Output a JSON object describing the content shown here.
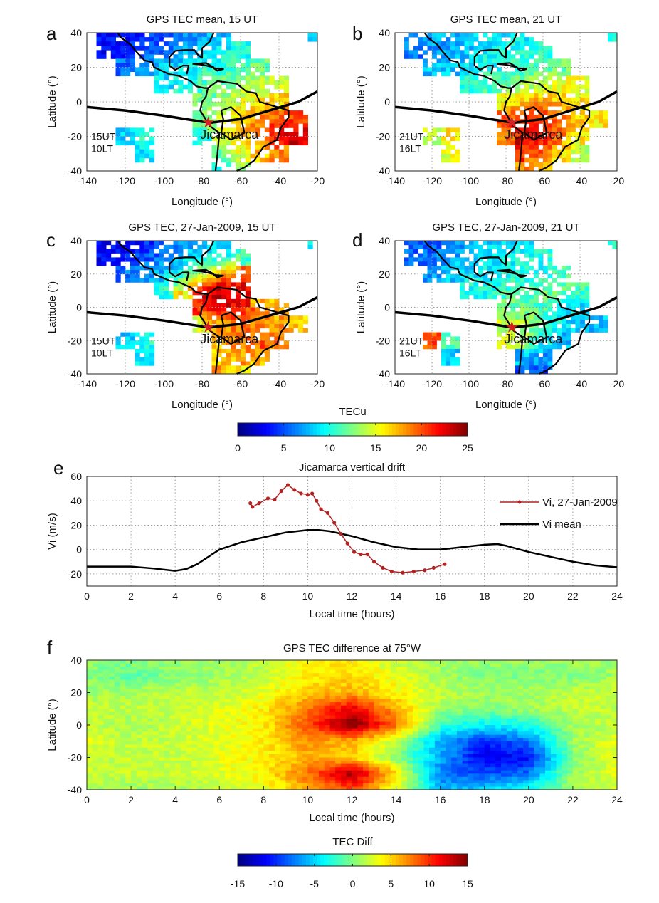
{
  "colors": {
    "equator_line": "#000000",
    "coastline": "#000000",
    "star": "#d42020",
    "vi_day": "#b22222",
    "vi_mean": "#000000",
    "grid": "#9a9a9a"
  },
  "colormap": "jet",
  "chart_data": [
    {
      "panel": "a",
      "type": "heatmap",
      "title": "GPS TEC mean, 15 UT",
      "xlabel": "Longitude (°)",
      "ylabel": "Latitude (°)",
      "xlim": [
        -140,
        -20
      ],
      "ylim": [
        -40,
        40
      ],
      "xticks": [
        "-140",
        "-120",
        "-100",
        "-80",
        "-60",
        "-40",
        "-20"
      ],
      "yticks": [
        "40",
        "20",
        "0",
        "-20",
        "-40"
      ],
      "grid": true,
      "annotation": [
        "15UT",
        "10LT"
      ],
      "marker_label": "Jicamarca",
      "colorbar": "TECu",
      "lon": [
        -140,
        -130,
        -120,
        -110,
        -100,
        -90,
        -80,
        -70,
        -60,
        -50,
        -40,
        -30,
        -20
      ],
      "lat": [
        40,
        30,
        20,
        10,
        0,
        -10,
        -20,
        -30,
        -40
      ],
      "values": [
        [
          null,
          3,
          3,
          4,
          5,
          6,
          7,
          8,
          null,
          null,
          null,
          null,
          9
        ],
        [
          null,
          3,
          4,
          5,
          6,
          7,
          8,
          9,
          10,
          null,
          null,
          null,
          null
        ],
        [
          null,
          null,
          6,
          7,
          8,
          9,
          10,
          11,
          11,
          12,
          null,
          null,
          null
        ],
        [
          null,
          null,
          null,
          null,
          9,
          10,
          11,
          12,
          13,
          14,
          14,
          null,
          null
        ],
        [
          null,
          null,
          null,
          null,
          null,
          null,
          12,
          13,
          15,
          16,
          17,
          null,
          null
        ],
        [
          null,
          null,
          null,
          null,
          null,
          null,
          12,
          15,
          17,
          19,
          20,
          20,
          null
        ],
        [
          null,
          null,
          8,
          10,
          null,
          null,
          10,
          14,
          17,
          19,
          22,
          23,
          null
        ],
        [
          null,
          null,
          null,
          9,
          null,
          null,
          null,
          12,
          15,
          17,
          19,
          null,
          null
        ],
        [
          null,
          null,
          null,
          null,
          null,
          null,
          null,
          10,
          13,
          null,
          null,
          null,
          null
        ]
      ]
    },
    {
      "panel": "b",
      "type": "heatmap",
      "title": "GPS TEC mean, 21 UT",
      "xlabel": "Longitude (°)",
      "ylabel": "Latitude (°)",
      "xlim": [
        -140,
        -20
      ],
      "ylim": [
        -40,
        40
      ],
      "xticks": [
        "-140",
        "-120",
        "-100",
        "-80",
        "-60",
        "-40",
        "-20"
      ],
      "yticks": [
        "40",
        "20",
        "0",
        "-20",
        "-40"
      ],
      "grid": true,
      "annotation": [
        "21UT",
        "16LT"
      ],
      "marker_label": "Jicamarca",
      "colorbar": "TECu",
      "lon": [
        -140,
        -130,
        -120,
        -110,
        -100,
        -90,
        -80,
        -70,
        -60,
        -50,
        -40,
        -30,
        -20
      ],
      "lat": [
        40,
        30,
        20,
        10,
        0,
        -10,
        -20,
        -30,
        -40
      ],
      "values": [
        [
          null,
          7,
          7,
          8,
          8,
          9,
          9,
          9,
          null,
          null,
          null,
          null,
          10
        ],
        [
          null,
          6,
          7,
          7,
          8,
          9,
          10,
          10,
          10,
          null,
          null,
          null,
          null
        ],
        [
          null,
          null,
          8,
          8,
          9,
          10,
          10,
          11,
          11,
          12,
          null,
          null,
          null
        ],
        [
          null,
          null,
          null,
          null,
          10,
          11,
          12,
          13,
          14,
          15,
          15,
          null,
          null
        ],
        [
          null,
          null,
          null,
          null,
          null,
          null,
          16,
          17,
          18,
          17,
          16,
          null,
          null
        ],
        [
          null,
          null,
          null,
          null,
          null,
          null,
          20,
          22,
          21,
          19,
          17,
          16,
          null
        ],
        [
          null,
          null,
          14,
          16,
          null,
          null,
          19,
          23,
          22,
          19,
          16,
          null,
          null
        ],
        [
          null,
          null,
          null,
          15,
          null,
          null,
          null,
          21,
          19,
          16,
          14,
          null,
          null
        ],
        [
          null,
          null,
          null,
          null,
          null,
          null,
          null,
          18,
          16,
          null,
          null,
          null,
          null
        ]
      ]
    },
    {
      "panel": "c",
      "type": "heatmap",
      "title": "GPS TEC, 27-Jan-2009, 15 UT",
      "xlabel": "Longitude (°)",
      "ylabel": "Latitude (°)",
      "xlim": [
        -140,
        -20
      ],
      "ylim": [
        -40,
        40
      ],
      "xticks": [
        "-140",
        "-120",
        "-100",
        "-80",
        "-60",
        "-40",
        "-20"
      ],
      "yticks": [
        "40",
        "20",
        "0",
        "-20",
        "-40"
      ],
      "grid": true,
      "annotation": [
        "15UT",
        "10LT"
      ],
      "marker_label": "Jicamarca",
      "colorbar": "TECu",
      "lon": [
        -140,
        -130,
        -120,
        -110,
        -100,
        -90,
        -80,
        -70,
        -60,
        -50,
        -40,
        -30,
        -20
      ],
      "lat": [
        40,
        30,
        20,
        10,
        0,
        -10,
        -20,
        -30,
        -40
      ],
      "values": [
        [
          null,
          3,
          3,
          4,
          5,
          7,
          8,
          9,
          null,
          null,
          null,
          null,
          9
        ],
        [
          null,
          3,
          4,
          5,
          6,
          8,
          9,
          10,
          11,
          null,
          null,
          null,
          null
        ],
        [
          null,
          null,
          6,
          7,
          8,
          10,
          14,
          18,
          20,
          null,
          null,
          null,
          null
        ],
        [
          null,
          null,
          null,
          null,
          10,
          16,
          22,
          24,
          22,
          null,
          null,
          null,
          null
        ],
        [
          null,
          null,
          null,
          null,
          null,
          null,
          21,
          23,
          22,
          18,
          17,
          null,
          null
        ],
        [
          null,
          null,
          null,
          null,
          null,
          null,
          15,
          18,
          19,
          19,
          18,
          17,
          null
        ],
        [
          null,
          null,
          8,
          10,
          null,
          null,
          null,
          17,
          19,
          20,
          19,
          null,
          null
        ],
        [
          null,
          null,
          null,
          9,
          null,
          null,
          null,
          17,
          18,
          17,
          null,
          null,
          null
        ],
        [
          null,
          null,
          null,
          null,
          null,
          null,
          null,
          18,
          16,
          null,
          null,
          null,
          null
        ]
      ]
    },
    {
      "panel": "d",
      "type": "heatmap",
      "title": "GPS TEC, 27-Jan-2009, 21 UT",
      "xlabel": "Longitude (°)",
      "ylabel": "Latitude (°)",
      "xlim": [
        -140,
        -20
      ],
      "ylim": [
        -40,
        40
      ],
      "xticks": [
        "-140",
        "-120",
        "-100",
        "-80",
        "-60",
        "-40",
        "-20"
      ],
      "yticks": [
        "40",
        "20",
        "0",
        "-20",
        "-40"
      ],
      "grid": true,
      "annotation": [
        "21UT",
        "16LT"
      ],
      "marker_label": "Jicamarca",
      "colorbar": "TECu",
      "lon": [
        -140,
        -130,
        -120,
        -110,
        -100,
        -90,
        -80,
        -70,
        -60,
        -50,
        -40,
        -30,
        -20
      ],
      "lat": [
        40,
        30,
        20,
        10,
        0,
        -10,
        -20,
        -30,
        -40
      ],
      "values": [
        [
          null,
          5,
          5,
          6,
          7,
          8,
          9,
          9,
          null,
          null,
          null,
          null,
          10
        ],
        [
          null,
          6,
          6,
          7,
          8,
          9,
          9,
          10,
          10,
          null,
          null,
          null,
          null
        ],
        [
          null,
          null,
          7,
          8,
          9,
          9,
          10,
          10,
          10,
          11,
          null,
          null,
          null
        ],
        [
          null,
          null,
          null,
          null,
          10,
          10,
          11,
          11,
          12,
          12,
          11,
          null,
          null
        ],
        [
          null,
          null,
          null,
          null,
          null,
          null,
          12,
          12,
          11,
          10,
          9,
          null,
          null
        ],
        [
          null,
          null,
          null,
          null,
          null,
          null,
          14,
          14,
          11,
          9,
          8,
          8,
          null
        ],
        [
          null,
          null,
          20,
          12,
          null,
          null,
          15,
          13,
          9,
          8,
          null,
          null,
          null
        ],
        [
          null,
          null,
          null,
          8,
          null,
          null,
          null,
          8,
          7,
          null,
          null,
          null,
          null
        ],
        [
          null,
          null,
          null,
          null,
          null,
          null,
          null,
          5,
          5,
          null,
          null,
          null,
          null
        ]
      ]
    },
    {
      "panel": "e",
      "type": "line",
      "title": "Jicamarca vertical drift",
      "xlabel": "Local time (hours)",
      "ylabel": "Vi (m/s)",
      "xlim": [
        0,
        24
      ],
      "ylim": [
        -30,
        60
      ],
      "xticks": [
        "0",
        "2",
        "4",
        "6",
        "8",
        "10",
        "12",
        "14",
        "16",
        "18",
        "20",
        "22",
        "24"
      ],
      "yticks": [
        "60",
        "40",
        "20",
        "0",
        "-20"
      ],
      "grid": true,
      "legend": "top-right",
      "series": [
        {
          "name": "Vi, 27-Jan-2009",
          "x": [
            7.4,
            7.5,
            7.8,
            8.2,
            8.5,
            8.8,
            9.1,
            9.4,
            9.7,
            10,
            10.2,
            10.4,
            10.6,
            10.9,
            11.2,
            11.5,
            11.8,
            12.1,
            12.4,
            12.7,
            13,
            13.4,
            13.8,
            14.3,
            14.8,
            15.3,
            15.7,
            16.2
          ],
          "y": [
            38,
            35,
            38,
            42,
            41,
            48,
            53,
            49,
            46,
            45,
            46,
            40,
            33,
            30,
            22,
            13,
            5,
            -2,
            -4,
            -4,
            -10,
            -15,
            -18,
            -19,
            -18,
            -17,
            -15,
            -12
          ]
        },
        {
          "name": "Vi mean",
          "x": [
            0,
            1,
            2,
            3,
            4,
            4.5,
            5,
            6,
            7,
            8,
            9,
            10,
            10.5,
            11,
            12,
            13,
            14,
            15,
            16,
            17,
            18,
            18.6,
            19,
            20,
            21,
            22,
            23,
            24
          ],
          "y": [
            -14,
            -14,
            -14,
            -15.5,
            -17.5,
            -16,
            -12,
            0,
            6,
            10,
            14,
            16,
            16,
            15,
            11,
            6,
            2,
            0,
            0,
            2,
            4,
            4.5,
            3,
            -2,
            -6,
            -10,
            -13,
            -14.5
          ]
        }
      ]
    },
    {
      "panel": "f",
      "type": "heatmap",
      "title": "GPS TEC difference at 75°W",
      "xlabel": "Local time (hours)",
      "ylabel": "Latitude (°)",
      "xlim": [
        0,
        24
      ],
      "ylim": [
        -40,
        40
      ],
      "xticks": [
        "0",
        "2",
        "4",
        "6",
        "8",
        "10",
        "12",
        "14",
        "16",
        "18",
        "20",
        "22",
        "24"
      ],
      "yticks": [
        "40",
        "20",
        "0",
        "-20",
        "-40"
      ],
      "colorbar": "TEC Diff",
      "x": [
        0,
        2,
        4,
        6,
        8,
        10,
        12,
        14,
        16,
        18,
        20,
        22,
        24
      ],
      "lat": [
        40,
        30,
        20,
        10,
        0,
        -10,
        -20,
        -30,
        -40
      ],
      "values": [
        [
          1,
          0,
          1,
          1,
          2,
          4,
          4,
          2,
          1,
          1,
          1,
          1,
          1
        ],
        [
          0,
          -1,
          0,
          1,
          2,
          4,
          5,
          3,
          1,
          0,
          0,
          0,
          1
        ],
        [
          1,
          1,
          2,
          2,
          3,
          5,
          6,
          4,
          2,
          1,
          1,
          2,
          2
        ],
        [
          2,
          2,
          2,
          3,
          4,
          8,
          12,
          6,
          1,
          0,
          1,
          2,
          2
        ],
        [
          2,
          1,
          2,
          3,
          4,
          9,
          15,
          8,
          -2,
          -4,
          -3,
          1,
          2
        ],
        [
          3,
          2,
          2,
          3,
          4,
          7,
          6,
          2,
          -6,
          -10,
          -8,
          1,
          3
        ],
        [
          2,
          2,
          2,
          3,
          4,
          6,
          5,
          0,
          -6,
          -12,
          -11,
          0,
          3
        ],
        [
          2,
          2,
          2,
          3,
          4,
          8,
          14,
          5,
          -8,
          -9,
          -8,
          1,
          3
        ],
        [
          1,
          1,
          1,
          2,
          3,
          6,
          9,
          3,
          -6,
          -5,
          -3,
          1,
          2
        ]
      ]
    }
  ],
  "colorbars": [
    {
      "label": "TECu",
      "range": [
        0,
        25
      ],
      "ticks": [
        "0",
        "5",
        "10",
        "15",
        "20",
        "25"
      ]
    },
    {
      "label": "TEC Diff",
      "range": [
        -15,
        15
      ],
      "ticks": [
        "-15",
        "-10",
        "-5",
        "0",
        "5",
        "10",
        "15"
      ]
    }
  ]
}
